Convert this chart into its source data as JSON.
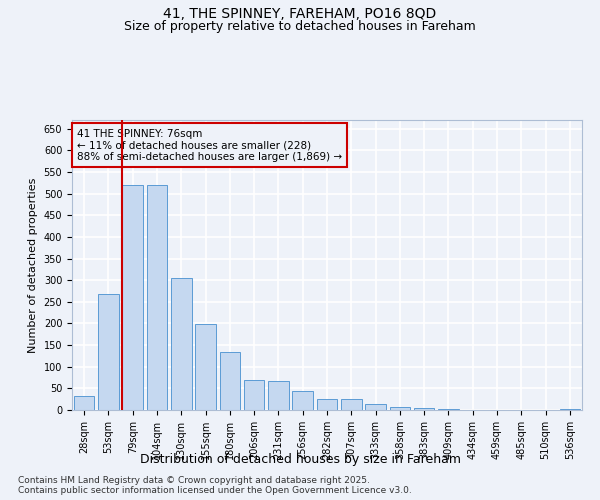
{
  "title": "41, THE SPINNEY, FAREHAM, PO16 8QD",
  "subtitle": "Size of property relative to detached houses in Fareham",
  "xlabel": "Distribution of detached houses by size in Fareham",
  "ylabel": "Number of detached properties",
  "categories": [
    "28sqm",
    "53sqm",
    "79sqm",
    "104sqm",
    "130sqm",
    "155sqm",
    "180sqm",
    "206sqm",
    "231sqm",
    "256sqm",
    "282sqm",
    "307sqm",
    "333sqm",
    "358sqm",
    "383sqm",
    "409sqm",
    "434sqm",
    "459sqm",
    "485sqm",
    "510sqm",
    "536sqm"
  ],
  "values": [
    33,
    268,
    519,
    519,
    304,
    198,
    134,
    70,
    68,
    43,
    25,
    25,
    15,
    7,
    5,
    2,
    1,
    1,
    1,
    1,
    2
  ],
  "bar_color": "#c5d8f0",
  "bar_edge_color": "#5b9bd5",
  "vline_color": "#cc0000",
  "annotation_text": "41 THE SPINNEY: 76sqm\n← 11% of detached houses are smaller (228)\n88% of semi-detached houses are larger (1,869) →",
  "annotation_box_edge_color": "#cc0000",
  "ylim": [
    0,
    670
  ],
  "yticks": [
    0,
    50,
    100,
    150,
    200,
    250,
    300,
    350,
    400,
    450,
    500,
    550,
    600,
    650
  ],
  "background_color": "#eef2f9",
  "grid_color": "#ffffff",
  "footer_line1": "Contains HM Land Registry data © Crown copyright and database right 2025.",
  "footer_line2": "Contains public sector information licensed under the Open Government Licence v3.0.",
  "title_fontsize": 10,
  "subtitle_fontsize": 9,
  "xlabel_fontsize": 9,
  "ylabel_fontsize": 8,
  "tick_fontsize": 7,
  "annotation_fontsize": 7.5,
  "footer_fontsize": 6.5
}
